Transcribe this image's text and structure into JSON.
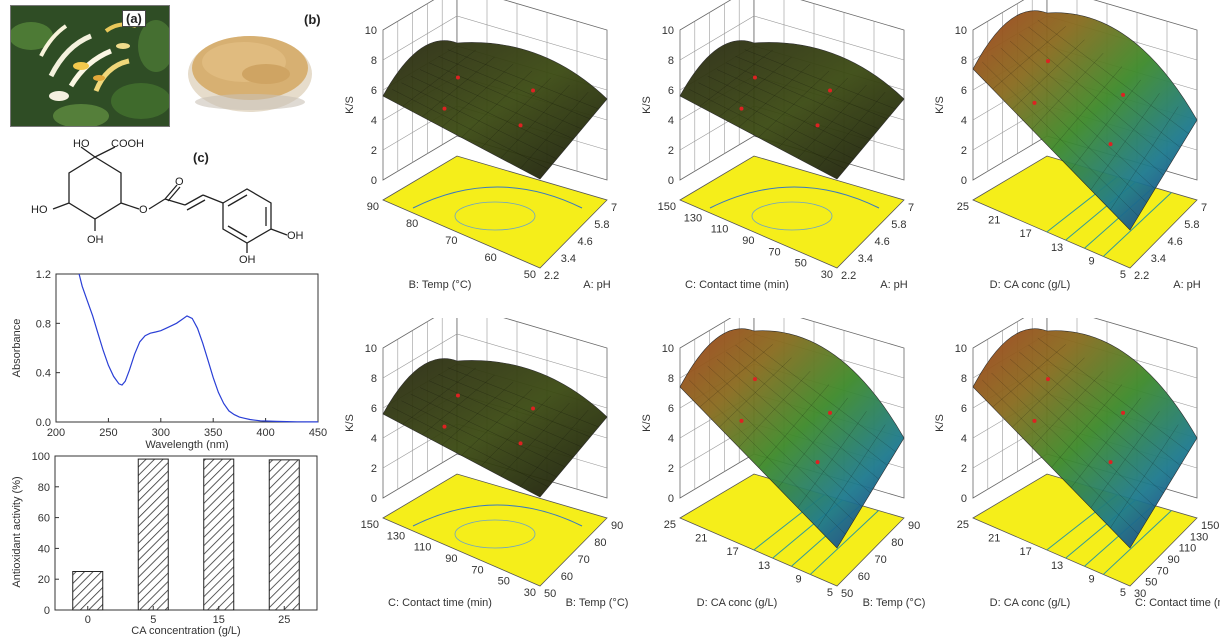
{
  "panels": {
    "a": "(a)",
    "b": "(b)",
    "c": "(c)"
  },
  "structure": {
    "ho_top": "HO",
    "cooh": "COOH",
    "ho_left": "HO",
    "oh_bottom": "OH",
    "o_ester": "O",
    "o_carbonyl": "O",
    "oh_ring1": "OH",
    "oh_ring2": "OH"
  },
  "absorbance_chart": {
    "type": "line",
    "xlabel": "Wavelength (nm)",
    "ylabel": "Absorbance",
    "xlim": [
      200,
      450
    ],
    "ylim": [
      0,
      1.2
    ],
    "xticks": [
      "200",
      "250",
      "300",
      "350",
      "400",
      "450"
    ],
    "yticks": [
      "0.0",
      "0.4",
      "0.8",
      "1.2"
    ],
    "line_color": "#2a3fd6",
    "x": [
      222,
      225,
      230,
      235,
      240,
      245,
      250,
      255,
      260,
      263,
      266,
      270,
      275,
      280,
      285,
      290,
      295,
      300,
      305,
      310,
      315,
      320,
      325,
      330,
      335,
      340,
      345,
      350,
      355,
      360,
      365,
      370,
      375,
      380,
      385,
      390,
      395,
      400,
      410,
      420,
      430,
      440,
      450
    ],
    "y": [
      1.2,
      1.1,
      0.98,
      0.86,
      0.72,
      0.58,
      0.46,
      0.37,
      0.31,
      0.3,
      0.33,
      0.42,
      0.55,
      0.65,
      0.7,
      0.72,
      0.73,
      0.74,
      0.76,
      0.78,
      0.8,
      0.83,
      0.86,
      0.84,
      0.76,
      0.64,
      0.5,
      0.36,
      0.24,
      0.15,
      0.09,
      0.06,
      0.04,
      0.03,
      0.02,
      0.015,
      0.01,
      0.008,
      0.005,
      0.003,
      0.002,
      0.001,
      0.001
    ]
  },
  "chart_data": {
    "type": "bar",
    "categories": [
      "0",
      "5",
      "15",
      "25"
    ],
    "values": [
      25,
      98,
      98,
      97.5
    ],
    "xlabel": "CA concentration (g/L)",
    "ylabel": "Antioxidant activity (%)",
    "ylim": [
      0,
      100
    ],
    "yticks": [
      "0",
      "20",
      "40",
      "60",
      "80",
      "100"
    ],
    "fill": "hatched"
  },
  "surfaces": [
    {
      "zlabel": "K/S",
      "zticks": [
        "0",
        "2",
        "4",
        "6",
        "8",
        "10"
      ],
      "ylabel": "B: Temp (°C)",
      "xlabel": "A: pH",
      "yticks": [
        "90",
        "80",
        "70",
        "60",
        "50"
      ],
      "xticks": [
        "2.2",
        "3.4",
        "4.6",
        "5.8",
        "7"
      ],
      "style": "dark"
    },
    {
      "zlabel": "K/S",
      "zticks": [
        "0",
        "2",
        "4",
        "6",
        "8",
        "10"
      ],
      "ylabel": "C: Contact time (min)",
      "xlabel": "A: pH",
      "yticks": [
        "150",
        "130",
        "110",
        "90",
        "70",
        "50",
        "30"
      ],
      "xticks": [
        "2.2",
        "3.4",
        "4.6",
        "5.8",
        "7"
      ],
      "style": "dark"
    },
    {
      "zlabel": "K/S",
      "zticks": [
        "0",
        "2",
        "4",
        "6",
        "8",
        "10"
      ],
      "ylabel": "D: CA conc (g/L)",
      "xlabel": "A: pH",
      "yticks": [
        "25",
        "21",
        "17",
        "13",
        "9",
        "5"
      ],
      "xticks": [
        "2.2",
        "3.4",
        "4.6",
        "5.8",
        "7"
      ],
      "style": "gradient"
    },
    {
      "zlabel": "K/S",
      "zticks": [
        "0",
        "2",
        "4",
        "6",
        "8",
        "10"
      ],
      "ylabel": "C: Contact time (min)",
      "xlabel": "B: Temp (°C)",
      "yticks": [
        "150",
        "130",
        "110",
        "90",
        "70",
        "50",
        "30"
      ],
      "xticks": [
        "50",
        "60",
        "70",
        "80",
        "90"
      ],
      "style": "dark"
    },
    {
      "zlabel": "K/S",
      "zticks": [
        "0",
        "2",
        "4",
        "6",
        "8",
        "10"
      ],
      "ylabel": "D: CA conc (g/L)",
      "xlabel": "B: Temp (°C)",
      "yticks": [
        "25",
        "21",
        "17",
        "13",
        "9",
        "5"
      ],
      "xticks": [
        "50",
        "60",
        "70",
        "80",
        "90"
      ],
      "style": "gradient"
    },
    {
      "zlabel": "K/S",
      "zticks": [
        "0",
        "2",
        "4",
        "6",
        "8",
        "10"
      ],
      "ylabel": "D: CA conc (g/L)",
      "xlabel": "C: Contact time (min)",
      "yticks": [
        "25",
        "21",
        "17",
        "13",
        "9",
        "5"
      ],
      "xticks": [
        "30",
        "50",
        "70",
        "90",
        "110",
        "130",
        "150"
      ],
      "style": "gradient"
    }
  ]
}
